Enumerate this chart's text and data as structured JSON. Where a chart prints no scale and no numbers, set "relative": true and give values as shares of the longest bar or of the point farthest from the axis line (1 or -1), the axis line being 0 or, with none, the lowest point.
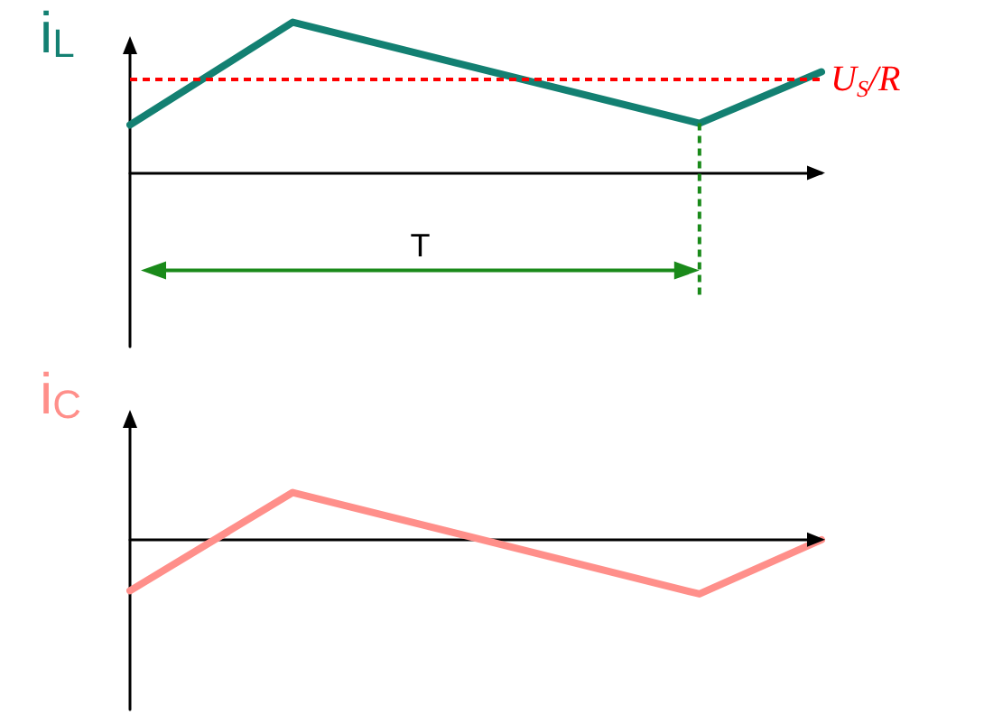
{
  "chart_data": [
    {
      "type": "line",
      "ylabel": "i$_{L}$",
      "relative": true,
      "categories": [
        null,
        null,
        null,
        null,
        null,
        null,
        null,
        null,
        null,
        null,
        null,
        null,
        null,
        null,
        null,
        null,
        null,
        null
      ],
      "series": [
        {
          "color": "#138072",
          "values": [
            0.318,
            null,
            null,
            null,
            1,
            null,
            null,
            null,
            null,
            null,
            null,
            null,
            null,
            null,
            0.329,
            null,
            null,
            0.671
          ]
        }
      ],
      "ref_lines": [
        {
          "axis": "y",
          "value": 0.624,
          "label": "U$_{S}$/R",
          "color": "#ff0000",
          "line_style": "dashed"
        }
      ],
      "annotations": [
        "T"
      ]
    },
    {
      "type": "line",
      "ylabel": "i$_{C}$",
      "relative": true,
      "categories": [
        null,
        null,
        null,
        null,
        null,
        null,
        null,
        null,
        null,
        null,
        null,
        null,
        null,
        null,
        null,
        null,
        null,
        null
      ],
      "series": [
        {
          "color": "#ff8f8a",
          "values": [
            -0.94,
            null,
            null,
            null,
            0.87,
            null,
            null,
            null,
            null,
            null,
            null,
            null,
            null,
            null,
            -1,
            null,
            null,
            0
          ]
        }
      ]
    }
  ]
}
